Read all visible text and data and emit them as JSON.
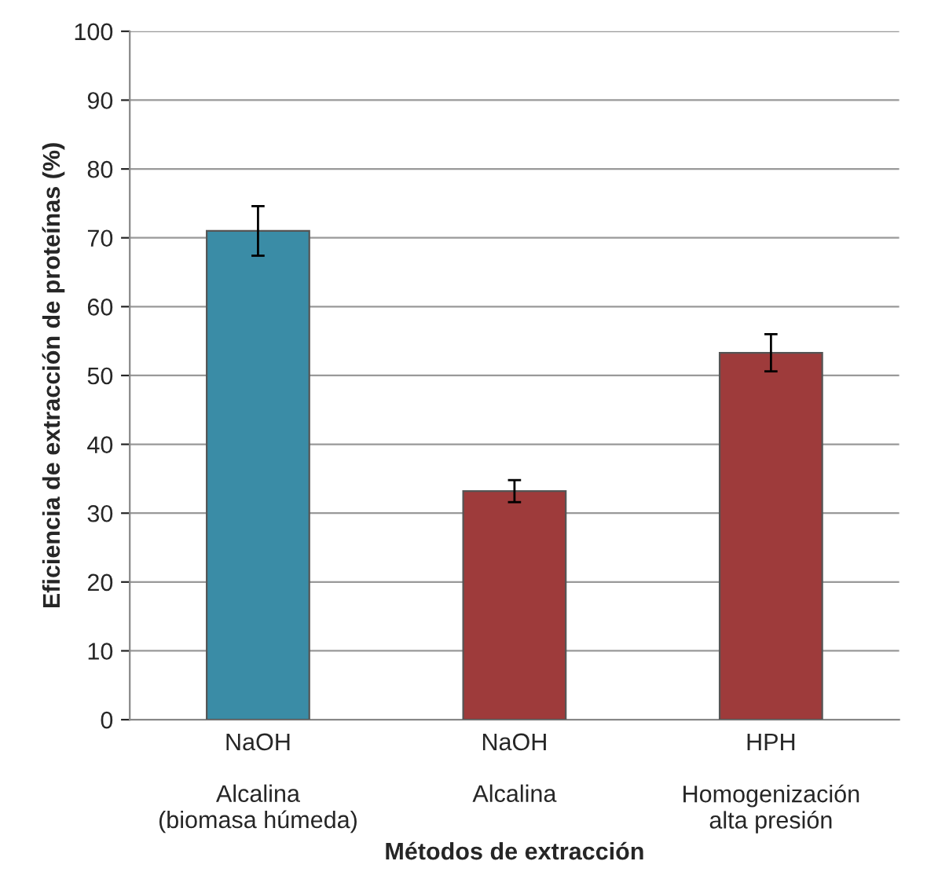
{
  "chart_data": {
    "type": "bar",
    "xlabel": "Métodos de extracción",
    "ylabel": "Eficiencia de extracción de proteínas (%)",
    "categories": [
      "NaOH\n\nAlcalina\n(biomasa húmeda)",
      "NaOH\n\nAlcalina",
      "HPH\n\nHomogenización\nalta presión"
    ],
    "values": [
      71,
      33.2,
      53.3
    ],
    "colors": [
      "#3a8ca6",
      "#9e3b3b",
      "#9e3b3b"
    ],
    "errors": [
      3.6,
      1.6,
      2.7
    ],
    "ylim": [
      0,
      100
    ],
    "yticks": [
      0,
      10,
      20,
      30,
      40,
      50,
      60,
      70,
      80,
      90,
      100
    ],
    "grid": "y",
    "legend": false
  }
}
